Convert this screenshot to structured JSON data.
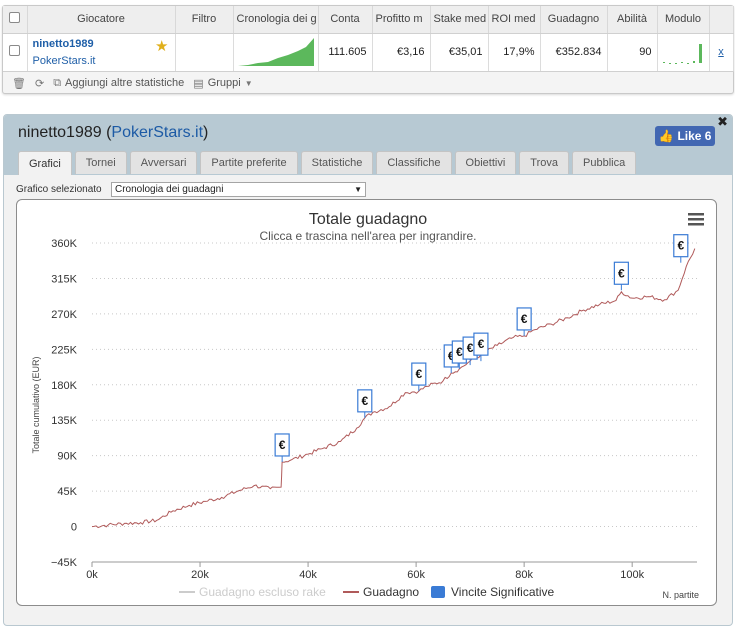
{
  "table": {
    "headers": [
      "Giocatore",
      "Filtro",
      "Cronologia dei g",
      "Conta",
      "Profitto m",
      "Stake med",
      "ROI med",
      "Guadagno",
      "Abilità",
      "Modulo"
    ],
    "row": {
      "player": "ninetto1989",
      "site": "PokerStars.it",
      "conta": "111.605",
      "profitto": "€3,16",
      "stake": "€35,01",
      "roi": "17,9%",
      "guadagno": "€352.834",
      "abilita": "90",
      "remove": "x"
    }
  },
  "toolbar": {
    "add_stats": "Aggiungi altre statistiche",
    "groups": "Gruppi"
  },
  "panel": {
    "player": "ninetto1989",
    "open_paren": "(",
    "site": "PokerStars.it",
    "close_paren": ")",
    "close": "✖",
    "like": "Like 6",
    "tabs": [
      "Grafici",
      "Tornei",
      "Avversari",
      "Partite preferite",
      "Statistiche",
      "Classifiche",
      "Obiettivi",
      "Trova",
      "Pubblica"
    ],
    "chart_select_label": "Grafico selezionato",
    "chart_select_value": "Cronologia dei guadagni"
  },
  "chart_data": {
    "type": "line",
    "title": "Totale guadagno",
    "subtitle": "Clicca e trascina nell'area per ingrandire.",
    "ylabel": "Totale cumulativo (EUR)",
    "xlabel": "N. partite",
    "ylim": [
      -45000,
      360000
    ],
    "xlim": [
      0,
      112000
    ],
    "y_ticks": [
      "360K",
      "315K",
      "270K",
      "225K",
      "180K",
      "135K",
      "90K",
      "45K",
      "0",
      "−45K"
    ],
    "y_tick_values": [
      360000,
      315000,
      270000,
      225000,
      180000,
      135000,
      90000,
      45000,
      0,
      -45000
    ],
    "x_ticks": [
      "0k",
      "20k",
      "40k",
      "60k",
      "80k",
      "100k"
    ],
    "x_tick_values": [
      0,
      20000,
      40000,
      60000,
      80000,
      100000
    ],
    "grid": true,
    "legend": "bottom",
    "series": [
      {
        "name": "Guadagno escluso rake",
        "visible": false,
        "color": "#cccccc",
        "x": [],
        "y": []
      },
      {
        "name": "Guadagno",
        "color": "#b05a5a",
        "x": [
          0,
          3000,
          6000,
          9000,
          12000,
          15000,
          18000,
          21000,
          24000,
          27000,
          30000,
          33000,
          35000,
          35200,
          37000,
          40000,
          43000,
          46000,
          49000,
          50500,
          52000,
          55000,
          58000,
          60500,
          62000,
          65000,
          66500,
          68000,
          70000,
          72000,
          75000,
          78000,
          80000,
          82000,
          85000,
          88000,
          91000,
          94000,
          97000,
          98000,
          100000,
          103000,
          106000,
          108500,
          110000,
          111600
        ],
        "y": [
          0,
          2000,
          4000,
          5000,
          8000,
          20000,
          27000,
          32000,
          37000,
          45000,
          52000,
          48000,
          50000,
          82000,
          85000,
          92000,
          100000,
          108000,
          125000,
          138000,
          145000,
          152000,
          170000,
          172000,
          178000,
          185000,
          195000,
          200000,
          210000,
          218000,
          230000,
          240000,
          242000,
          250000,
          257000,
          265000,
          275000,
          282000,
          287000,
          298000,
          290000,
          292000,
          288000,
          300000,
          330000,
          352834
        ]
      }
    ],
    "significant_wins": {
      "name": "Vincite Significative",
      "color": "#3a7bd5",
      "symbol": "€",
      "x": [
        35200,
        50500,
        60500,
        66500,
        68000,
        70000,
        72000,
        80000,
        98000,
        109000
      ],
      "y": [
        82000,
        138000,
        172000,
        195000,
        200000,
        205000,
        210000,
        242000,
        300000,
        335000
      ]
    }
  }
}
